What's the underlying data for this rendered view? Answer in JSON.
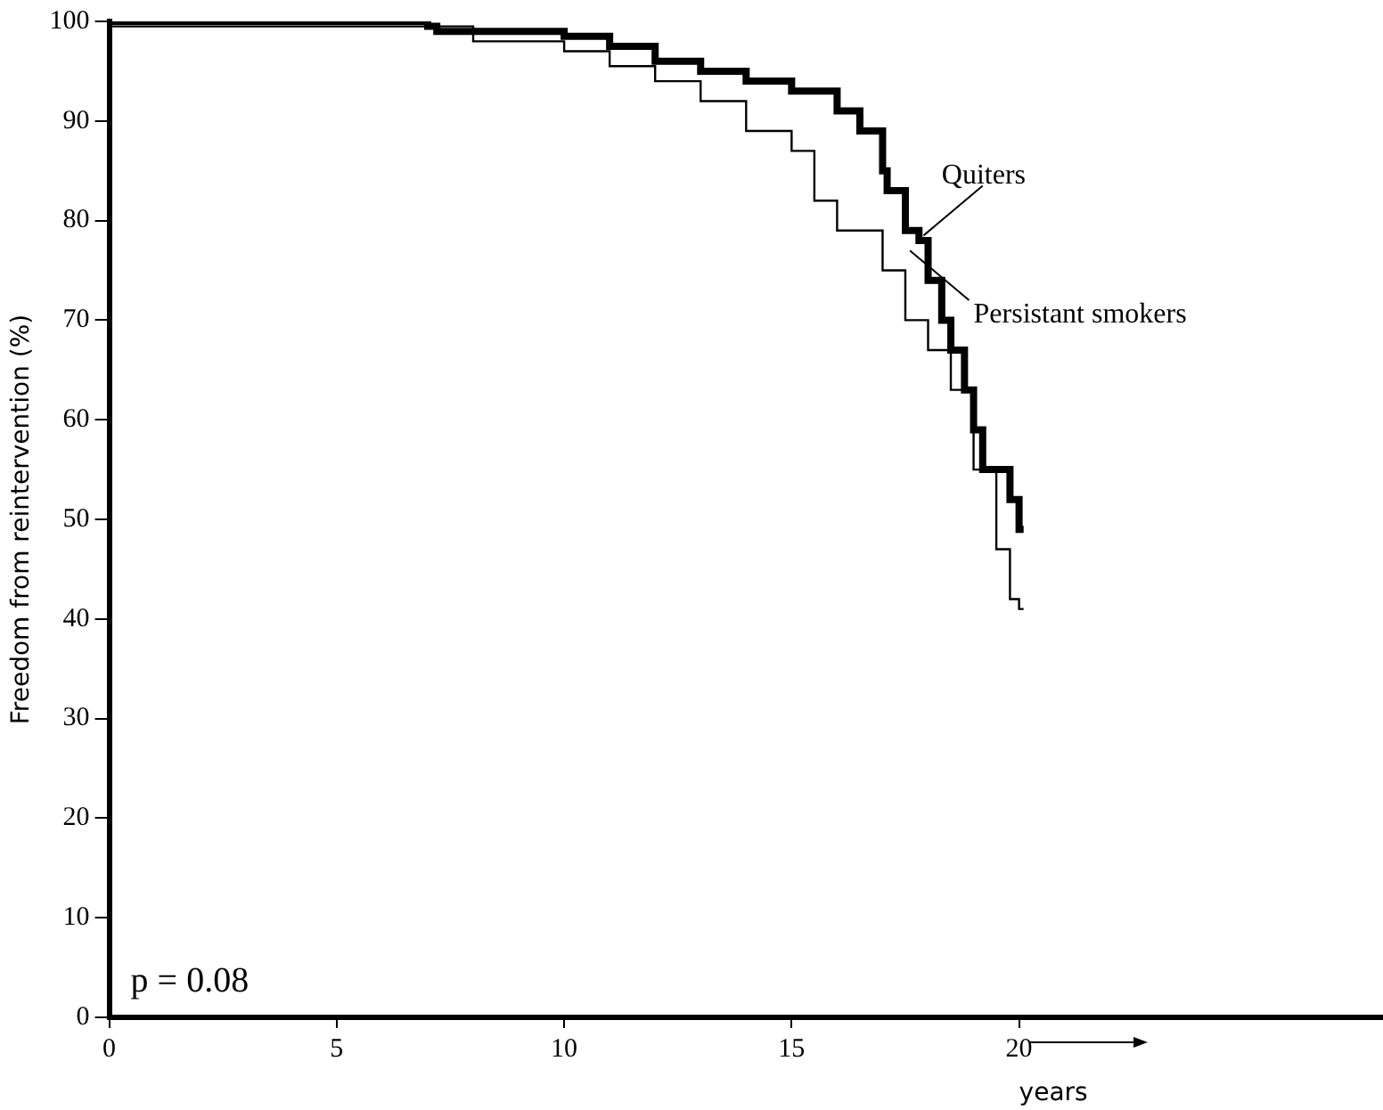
{
  "chart_data": {
    "type": "step",
    "ylabel": "Freedom from reintervention (%)",
    "xlabel": "years",
    "xlim": [
      0,
      28
    ],
    "xticks": [
      0,
      5,
      10,
      15,
      20
    ],
    "ylim": [
      0,
      100
    ],
    "yticks": [
      0,
      10,
      20,
      30,
      40,
      50,
      60,
      70,
      80,
      90,
      100
    ],
    "grid": false,
    "legend": "right",
    "marker": "none",
    "line_style": "solid",
    "annotations": [
      "p = 0.08"
    ],
    "series": [
      {
        "name": "Quiters",
        "color": "#000000",
        "x": [
          0,
          7,
          7.2,
          9,
          10,
          11,
          12,
          13,
          14,
          15,
          16,
          16.5,
          17,
          17.1,
          17.5,
          17.8,
          18,
          18.3,
          18.5,
          18.8,
          19,
          19.2,
          19.4,
          19.8,
          20,
          20.1
        ],
        "values": [
          100,
          100,
          99.5,
          99,
          99,
          98.5,
          97.5,
          96,
          95,
          94,
          93,
          91,
          89,
          85,
          83,
          79,
          78,
          74,
          70,
          67,
          63,
          59,
          55,
          55,
          52,
          49
        ]
      },
      {
        "name": "Persistant smokers",
        "color": "#000000",
        "x": [
          0,
          8,
          10,
          11,
          12,
          13,
          14,
          15,
          15.5,
          16,
          17,
          17.5,
          18,
          18.5,
          19,
          19.5,
          19.8,
          20,
          20.1
        ],
        "values": [
          100,
          99.5,
          98,
          97,
          95.5,
          94,
          92,
          89,
          87,
          82,
          79,
          75,
          70,
          67,
          63,
          55,
          47,
          42,
          41
        ]
      }
    ]
  }
}
